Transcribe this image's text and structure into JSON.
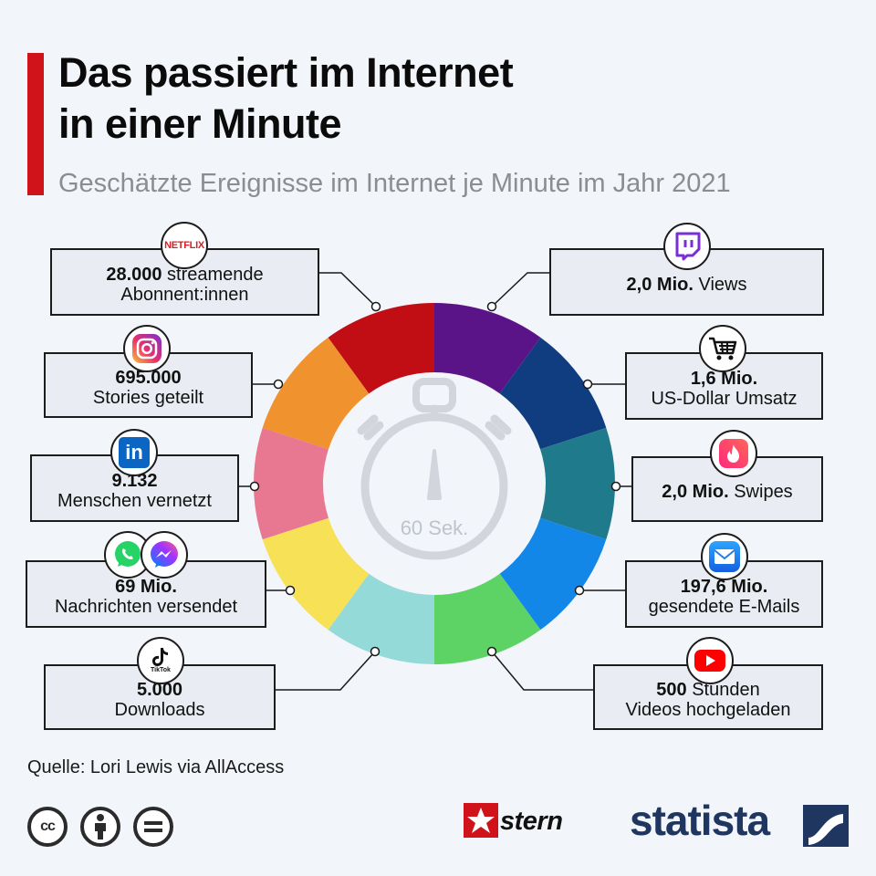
{
  "header": {
    "title_line1": "Das passiert im Internet",
    "title_line2": "in einer Minute",
    "subtitle": "Geschätzte Ereignisse im Internet je Minute im Jahr 2021"
  },
  "center_label": "60 Sek.",
  "chart_data": {
    "type": "pie",
    "title": "Das passiert im Internet in einer Minute",
    "subtitle": "Geschätzte Ereignisse im Internet je Minute im Jahr 2021",
    "segments": [
      {
        "service": "Twitch",
        "value": "2,0 Mio.",
        "text": "Views",
        "color": "#5b1487"
      },
      {
        "service": "Amazon",
        "value": "1,6 Mio.",
        "text": "US-Dollar Umsatz",
        "color": "#0f3d80"
      },
      {
        "service": "Tinder",
        "value": "2,0 Mio.",
        "text": "Swipes",
        "color": "#1f7a8c"
      },
      {
        "service": "E-Mail",
        "value": "197,6 Mio.",
        "text": "gesendete E-Mails",
        "color": "#1287e8"
      },
      {
        "service": "YouTube",
        "value": "500",
        "text": "Stunden Videos hochgeladen",
        "color": "#5dd265"
      },
      {
        "service": "TikTok",
        "value": "5.000",
        "text": "Downloads",
        "color": "#94dad8"
      },
      {
        "service": "WhatsApp / Messenger",
        "value": "69 Mio.",
        "text": "Nachrichten versendet",
        "color": "#f6e157"
      },
      {
        "service": "LinkedIn",
        "value": "9.132",
        "text": "Menschen vernetzt",
        "color": "#e87891"
      },
      {
        "service": "Instagram",
        "value": "695.000",
        "text": "Stories geteilt",
        "color": "#f0922e"
      },
      {
        "service": "Netflix",
        "value": "28.000",
        "text": "streamende Abonnent:innen",
        "color": "#c10d14"
      }
    ]
  },
  "stats": {
    "netflix": {
      "value": "28.000",
      "text1": " streamende",
      "text2": "Abonnent:innen",
      "logo": "NETFLIX"
    },
    "instagram": {
      "value": "695.000",
      "text": "Stories geteilt"
    },
    "linkedin": {
      "value": "9.132",
      "text": "Menschen vernetzt",
      "logo": "in"
    },
    "whatsapp": {
      "value": "69 Mio.",
      "text": "Nachrichten versendet"
    },
    "tiktok": {
      "value": "5.000",
      "text": "Downloads",
      "logo": "TikTok"
    },
    "twitch": {
      "value": "2,0 Mio.",
      "text": " Views"
    },
    "amazon": {
      "value": "1,6 Mio.",
      "text": "US-Dollar Umsatz"
    },
    "tinder": {
      "value": "2,0 Mio.",
      "text": " Swipes"
    },
    "email": {
      "value": "197,6 Mio.",
      "text": "gesendete E-Mails"
    },
    "youtube": {
      "value": "500",
      "text1": " Stunden",
      "text2": "Videos hochgeladen"
    }
  },
  "icons": [
    "netflix-icon",
    "instagram-icon",
    "linkedin-icon",
    "whatsapp-icon",
    "messenger-icon",
    "tiktok-icon",
    "twitch-icon",
    "shopping-cart-icon",
    "tinder-icon",
    "email-icon",
    "youtube-icon",
    "stopwatch-icon",
    "cc-icon",
    "by-icon",
    "nd-icon"
  ],
  "footer": {
    "source": "Quelle: Lori Lewis via AllAccess",
    "cc": "cc",
    "stern": "stern",
    "statista": "statista"
  }
}
